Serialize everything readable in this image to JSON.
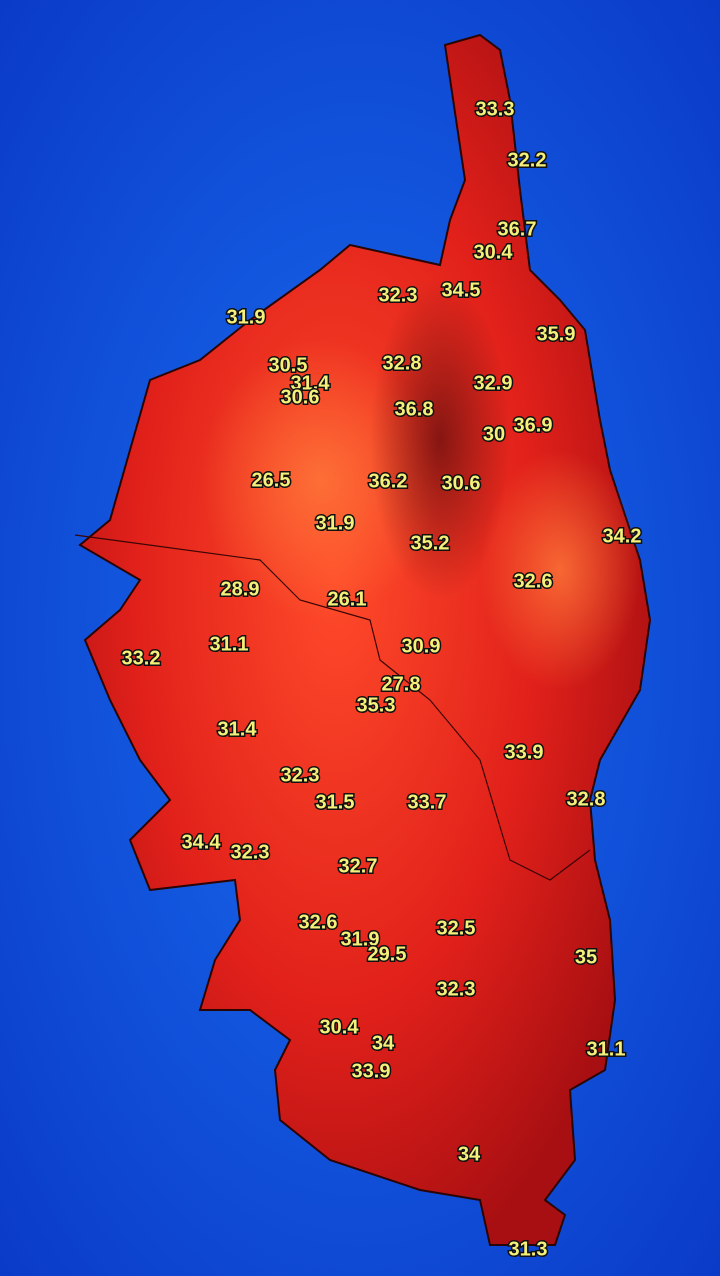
{
  "readings": [
    "33.3",
    "32.2",
    "36.7",
    "30.4",
    "32.3",
    "34.5",
    "31.9",
    "35.9",
    "30.5",
    "32.8",
    "31.4",
    "30.6",
    "32.9",
    "36.8",
    "30",
    "36.9",
    "26.5",
    "36.2",
    "30.6",
    "31.9",
    "35.2",
    "34.2",
    "28.9",
    "26.1",
    "32.6",
    "31.1",
    "33.2",
    "30.9",
    "27.8",
    "35.3",
    "31.4",
    "33.9",
    "32.3",
    "31.5",
    "33.7",
    "32.8",
    "34.4",
    "32.3",
    "32.7",
    "32.6",
    "31.9",
    "29.5",
    "32.5",
    "35",
    "32.3",
    "30.4",
    "34",
    "31.1",
    "33.9",
    "34",
    "31.3"
  ]
}
